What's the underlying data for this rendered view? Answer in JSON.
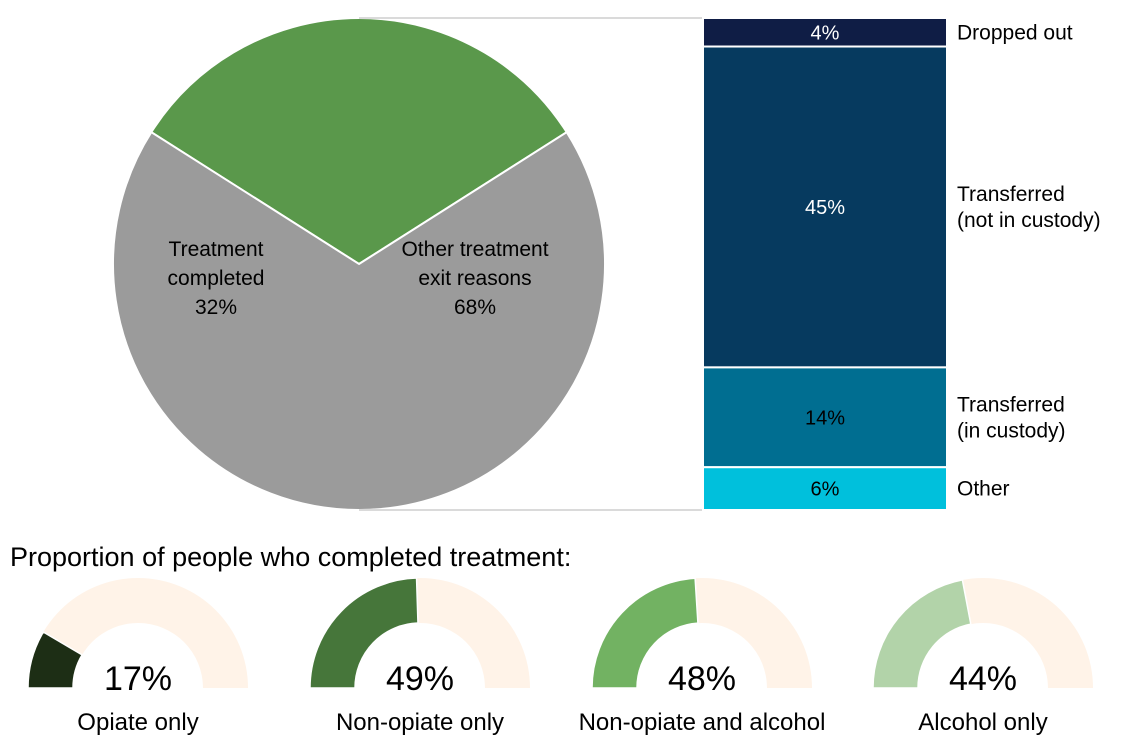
{
  "colors": {
    "completed_green": "#5a984b",
    "other_gray": "#9b9b9b",
    "gauge_track": "#fff3e8",
    "dropped_out": "#0f1d45",
    "transferred_not_custody": "#063a5f",
    "transferred_custody": "#006e91",
    "other_reason": "#00c0dc",
    "connector": "#b4b4b4"
  },
  "chart_data": [
    {
      "type": "pie",
      "title": "",
      "slices": [
        {
          "label_lines": [
            "Treatment",
            "completed"
          ],
          "value": 32,
          "value_label": "32%",
          "color_key": "completed_green"
        },
        {
          "label_lines": [
            "Other treatment",
            "exit reasons"
          ],
          "value": 68,
          "value_label": "68%",
          "color_key": "other_gray"
        }
      ]
    },
    {
      "type": "bar",
      "stacked": true,
      "title": "Other treatment exit reasons",
      "segments": [
        {
          "label_lines": [
            "Dropped out"
          ],
          "value": 4,
          "value_label": "4%",
          "color_key": "dropped_out",
          "text_color": "#ffffff"
        },
        {
          "label_lines": [
            "Transferred",
            "(not in custody)"
          ],
          "value": 45,
          "value_label": "45%",
          "color_key": "transferred_not_custody",
          "text_color": "#ffffff"
        },
        {
          "label_lines": [
            "Transferred",
            "(in custody)"
          ],
          "value": 14,
          "value_label": "14%",
          "color_key": "transferred_custody",
          "text_color": "#000000"
        },
        {
          "label_lines": [
            "Other"
          ],
          "value": 6,
          "value_label": "6%",
          "color_key": "other_reason",
          "text_color": "#000000"
        }
      ]
    },
    {
      "type": "gauge",
      "title": "Proportion of people who completed treatment:",
      "gauges": [
        {
          "label": "Opiate only",
          "value": 17,
          "value_label": "17%",
          "color": "#1d2e15"
        },
        {
          "label": "Non-opiate only",
          "value": 49,
          "value_label": "49%",
          "color": "#46763a"
        },
        {
          "label": "Non-opiate and alcohol",
          "value": 48,
          "value_label": "48%",
          "color": "#72b262"
        },
        {
          "label": "Alcohol only",
          "value": 44,
          "value_label": "44%",
          "color": "#b2d3a9"
        }
      ]
    }
  ]
}
